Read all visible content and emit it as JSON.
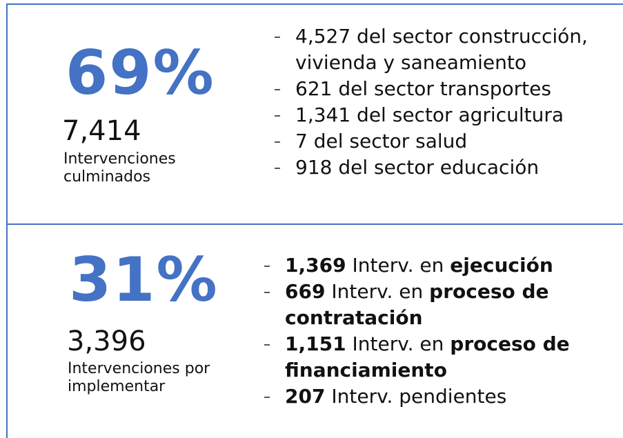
{
  "sections": [
    {
      "percent": "69%",
      "count": "7,414",
      "caption": "Intervenciones culminados",
      "items": [
        {
          "segments": [
            {
              "text": "4,527 del sector construcción, vivienda y saneamiento",
              "bold": false
            }
          ]
        },
        {
          "segments": [
            {
              "text": "621 del sector transportes",
              "bold": false
            }
          ]
        },
        {
          "segments": [
            {
              "text": "1,341 del sector agricultura",
              "bold": false
            }
          ]
        },
        {
          "segments": [
            {
              "text": "7 del sector salud",
              "bold": false
            }
          ]
        },
        {
          "segments": [
            {
              "text": "918 del sector educación",
              "bold": false
            }
          ]
        }
      ]
    },
    {
      "percent": "31%",
      "count": "3,396",
      "caption": "Intervenciones por implementar",
      "items": [
        {
          "segments": [
            {
              "text": "1,369",
              "bold": true
            },
            {
              "text": " Interv. en ",
              "bold": false
            },
            {
              "text": "ejecución",
              "bold": true
            }
          ]
        },
        {
          "segments": [
            {
              "text": "669",
              "bold": true
            },
            {
              "text": " Interv. en ",
              "bold": false
            },
            {
              "text": "proceso de contratación",
              "bold": true
            }
          ]
        },
        {
          "segments": [
            {
              "text": "1,151",
              "bold": true
            },
            {
              "text": " Interv. en ",
              "bold": false
            },
            {
              "text": "proceso de financiamiento",
              "bold": true
            }
          ]
        },
        {
          "segments": [
            {
              "text": "207",
              "bold": true
            },
            {
              "text": " Interv. pendientes",
              "bold": false
            }
          ]
        }
      ]
    }
  ]
}
